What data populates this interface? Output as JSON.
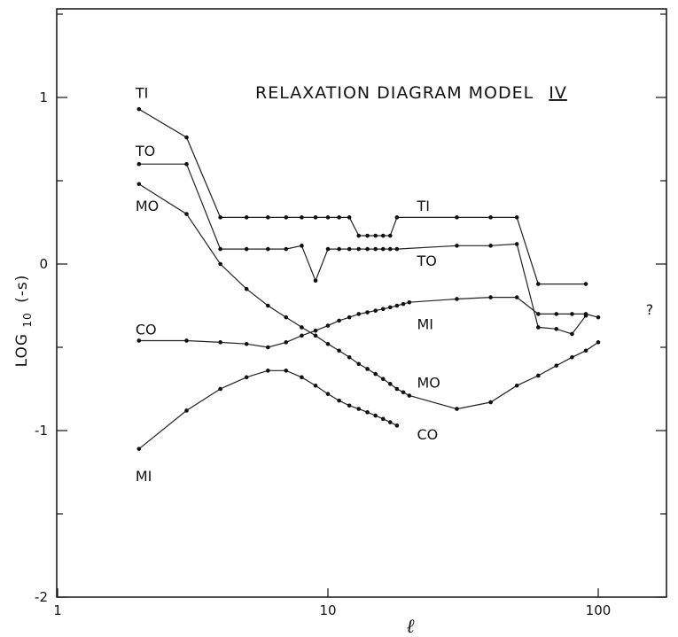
{
  "chart_data": {
    "type": "line",
    "title": "RELAXATION DIAGRAM MODEL",
    "title_numeral": "IV",
    "xlabel": "ℓ",
    "ylabel": "LOG10 (-s)",
    "ylabel_main": "LOG",
    "ylabel_sub": "10",
    "ylabel_paren": "(-s)",
    "x_scale": "log",
    "xlim": [
      1,
      200
    ],
    "ylim": [
      -2,
      1.5
    ],
    "x_tick_labels": [
      {
        "value": 1,
        "label": "1"
      },
      {
        "value": 10,
        "label": "10"
      },
      {
        "value": 100,
        "label": "100"
      }
    ],
    "y_tick_labels": [
      {
        "value": 1,
        "label": "1"
      },
      {
        "value": 0,
        "label": "0"
      },
      {
        "value": -1,
        "label": "-1"
      },
      {
        "value": -2,
        "label": "-2"
      }
    ],
    "annotations": [
      {
        "text": "?",
        "x": 150,
        "y": -0.27
      }
    ],
    "series": [
      {
        "name": "TI",
        "labels": [
          {
            "text": "TI",
            "x": 2,
            "y": 1.03
          },
          {
            "text": "TI",
            "x": 22,
            "y": 0.35
          }
        ],
        "x": [
          2,
          3,
          4,
          5,
          6,
          7,
          8,
          9,
          10,
          11,
          12,
          13,
          14,
          15,
          16,
          17,
          18,
          30,
          40,
          50,
          60,
          90
        ],
        "y": [
          0.93,
          0.76,
          0.28,
          0.28,
          0.28,
          0.28,
          0.28,
          0.28,
          0.28,
          0.28,
          0.28,
          0.17,
          0.17,
          0.17,
          0.17,
          0.17,
          0.28,
          0.28,
          0.28,
          0.28,
          -0.12,
          -0.12
        ]
      },
      {
        "name": "TO",
        "labels": [
          {
            "text": "TO",
            "x": 2,
            "y": 0.68
          },
          {
            "text": "TO",
            "x": 22,
            "y": 0.02
          }
        ],
        "x": [
          2,
          3,
          4,
          5,
          6,
          7,
          8,
          9,
          10,
          11,
          12,
          13,
          14,
          15,
          16,
          17,
          18,
          30,
          40,
          50,
          60,
          70,
          80,
          90
        ],
        "y": [
          0.6,
          0.6,
          0.09,
          0.09,
          0.09,
          0.09,
          0.11,
          -0.1,
          0.09,
          0.09,
          0.09,
          0.09,
          0.09,
          0.09,
          0.09,
          0.09,
          0.09,
          0.11,
          0.11,
          0.12,
          -0.38,
          -0.39,
          -0.42,
          -0.31
        ]
      },
      {
        "name": "MO",
        "labels": [
          {
            "text": "MO",
            "x": 2,
            "y": 0.35
          },
          {
            "text": "MO",
            "x": 22,
            "y": -0.71
          }
        ],
        "x": [
          2,
          3,
          4,
          5,
          6,
          7,
          8,
          9,
          10,
          11,
          12,
          13,
          14,
          15,
          16,
          17,
          18,
          19,
          20,
          30,
          40,
          50,
          60,
          70,
          80,
          90,
          100
        ],
        "y": [
          0.48,
          0.3,
          0.0,
          -0.15,
          -0.25,
          -0.32,
          -0.38,
          -0.43,
          -0.48,
          -0.52,
          -0.56,
          -0.6,
          -0.63,
          -0.66,
          -0.69,
          -0.72,
          -0.75,
          -0.77,
          -0.79,
          -0.87,
          -0.83,
          -0.73,
          -0.67,
          -0.61,
          -0.56,
          -0.52,
          -0.47
        ]
      },
      {
        "name": "CO",
        "labels": [
          {
            "text": "CO",
            "x": 2,
            "y": -0.39
          },
          {
            "text": "CO",
            "x": 22,
            "y": -1.02
          }
        ],
        "x": [
          2,
          3,
          4,
          5,
          6,
          7,
          8,
          9,
          10,
          11,
          12,
          13,
          14,
          15,
          16,
          17,
          18,
          19,
          20,
          30,
          40,
          50,
          60,
          70,
          80,
          90,
          100
        ],
        "y": [
          -0.46,
          -0.46,
          -0.47,
          -0.48,
          -0.5,
          -0.47,
          -0.43,
          -0.4,
          -0.37,
          -0.34,
          -0.32,
          -0.3,
          -0.29,
          -0.28,
          -0.27,
          -0.26,
          -0.25,
          -0.24,
          -0.23,
          -0.21,
          -0.2,
          -0.2,
          -0.3,
          -0.3,
          -0.3,
          -0.3,
          -0.32
        ]
      },
      {
        "name": "MI",
        "labels": [
          {
            "text": "MI",
            "x": 2,
            "y": -1.27
          },
          {
            "text": "MI",
            "x": 22,
            "y": -0.36
          }
        ],
        "x": [
          2,
          3,
          4,
          5,
          6,
          7,
          8,
          9,
          10,
          11,
          12,
          13,
          14,
          15,
          16,
          17,
          18
        ],
        "y": [
          -1.11,
          -0.88,
          -0.75,
          -0.68,
          -0.64,
          -0.64,
          -0.68,
          -0.73,
          -0.78,
          -0.82,
          -0.85,
          -0.87,
          -0.89,
          -0.91,
          -0.93,
          -0.95,
          -0.97
        ]
      }
    ]
  }
}
